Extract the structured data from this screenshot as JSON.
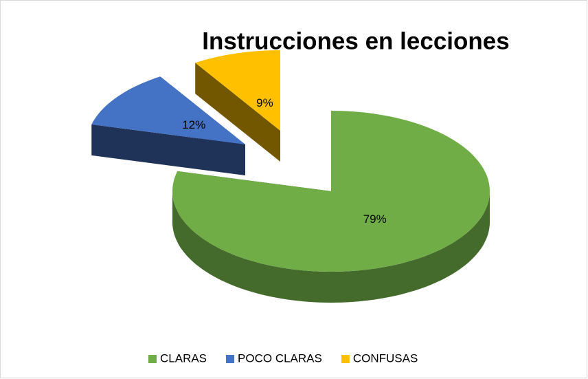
{
  "chart_data": {
    "type": "pie3d",
    "title": "Instrucciones en lecciones",
    "categories": [
      "CLARAS",
      "POCO CLARAS",
      "CONFUSAS"
    ],
    "values": [
      79,
      12,
      9
    ],
    "value_labels": [
      "79%",
      "12%",
      "9%"
    ],
    "colors": [
      "#70ad47",
      "#4472c4",
      "#ffc000"
    ],
    "legend": "bottom"
  }
}
